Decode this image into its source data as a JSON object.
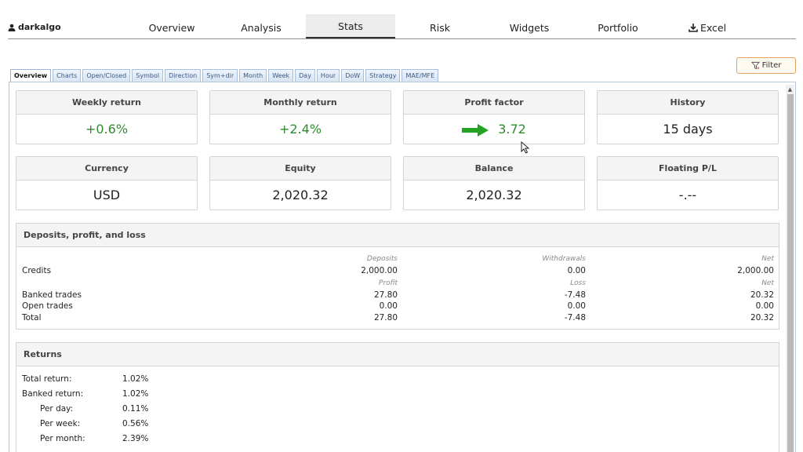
{
  "user": {
    "name": "darkalgo"
  },
  "nav": {
    "tabs": [
      "Overview",
      "Analysis",
      "Stats",
      "Risk",
      "Widgets",
      "Portfolio",
      "Excel"
    ],
    "active": "Stats"
  },
  "filter": {
    "label": "Filter"
  },
  "subtabs": [
    "Overview",
    "Charts",
    "Open/Closed",
    "Symbol",
    "Direction",
    "Sym+dir",
    "Month",
    "Week",
    "Day",
    "Hour",
    "DoW",
    "Strategy",
    "MAE/MFE"
  ],
  "cards": [
    {
      "title": "Weekly return",
      "value": "+0.6%",
      "color": "#2e8b2e"
    },
    {
      "title": "Monthly return",
      "value": "+2.4%",
      "color": "#2e8b2e"
    },
    {
      "title": "Profit factor",
      "value": "3.72",
      "color": "#2e8b2e",
      "icon": "right-arrow-icon"
    },
    {
      "title": "History",
      "value": "15 days"
    },
    {
      "title": "Currency",
      "value": "USD"
    },
    {
      "title": "Equity",
      "value": "2,020.32"
    },
    {
      "title": "Balance",
      "value": "2,020.32"
    },
    {
      "title": "Floating P/L",
      "value": "-.--"
    }
  ],
  "deposits": {
    "title": "Deposits, profit, and loss",
    "credits_headers": [
      "Deposits",
      "Withdrawals",
      "Net"
    ],
    "credits": {
      "label": "Credits",
      "values": [
        "2,000.00",
        "0.00",
        "2,000.00"
      ]
    },
    "trade_headers": [
      "Profit",
      "Loss",
      "Net"
    ],
    "rows": [
      {
        "label": "Banked trades",
        "values": [
          "27.80",
          "-7.48",
          "20.32"
        ]
      },
      {
        "label": "Open trades",
        "values": [
          "0.00",
          "0.00",
          "0.00"
        ]
      },
      {
        "label": "Total",
        "values": [
          "27.80",
          "-7.48",
          "20.32"
        ]
      }
    ]
  },
  "returns": {
    "title": "Returns",
    "rows": [
      {
        "label": "Total return:",
        "value": "1.02%",
        "indent": false
      },
      {
        "label": "Banked return:",
        "value": "1.02%",
        "indent": false
      },
      {
        "label": "Per day:",
        "value": "0.11%",
        "indent": true
      },
      {
        "label": "Per week:",
        "value": "0.56%",
        "indent": true
      },
      {
        "label": "Per month:",
        "value": "2.39%",
        "indent": true
      }
    ]
  }
}
